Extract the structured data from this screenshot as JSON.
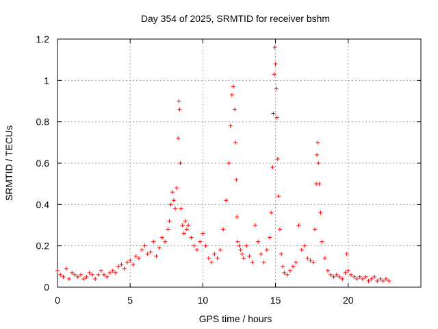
{
  "chart_data": {
    "type": "scatter",
    "title": "Day 354 of 2025, SRMTID for receiver bshm",
    "xlabel": "GPS time / hours",
    "ylabel": "SRMTID / TECUs",
    "xlim": [
      0,
      25
    ],
    "ylim": [
      0,
      1.2
    ],
    "xticks": [
      0,
      5,
      10,
      15,
      20
    ],
    "xtick_labels": [
      "0",
      "5",
      "10",
      "15",
      "20"
    ],
    "yticks": [
      0,
      0.2,
      0.4,
      0.6,
      0.8,
      1,
      1.2
    ],
    "ytick_labels": [
      "0",
      "0.2",
      "0.4",
      "0.6",
      "0.8",
      "1",
      "1.2"
    ],
    "grid": true,
    "marker": "+",
    "marker_color": "#ff0000",
    "series": [
      {
        "name": "bshm",
        "x": [
          0.0,
          0.2,
          0.4,
          0.6,
          0.8,
          1.0,
          1.2,
          1.4,
          1.6,
          1.8,
          2.0,
          2.2,
          2.4,
          2.6,
          2.8,
          3.0,
          3.2,
          3.4,
          3.6,
          3.8,
          4.0,
          4.2,
          4.4,
          4.6,
          4.8,
          5.0,
          5.2,
          5.4,
          5.6,
          5.8,
          6.0,
          6.2,
          6.4,
          6.6,
          6.8,
          7.0,
          7.2,
          7.4,
          7.6,
          7.7,
          7.8,
          7.9,
          8.0,
          8.1,
          8.2,
          8.3,
          8.35,
          8.4,
          8.45,
          8.5,
          8.6,
          8.7,
          8.8,
          8.9,
          9.0,
          9.2,
          9.4,
          9.6,
          9.8,
          10.0,
          10.2,
          10.4,
          10.6,
          10.8,
          11.0,
          11.2,
          11.4,
          11.6,
          11.8,
          11.9,
          12.0,
          12.1,
          12.2,
          12.25,
          12.3,
          12.35,
          12.4,
          12.5,
          12.6,
          12.7,
          12.8,
          13.0,
          13.2,
          13.4,
          13.6,
          13.8,
          14.0,
          14.2,
          14.4,
          14.6,
          14.7,
          14.8,
          14.85,
          14.9,
          14.95,
          15.0,
          15.05,
          15.1,
          15.15,
          15.2,
          15.3,
          15.4,
          15.5,
          15.6,
          15.8,
          16.0,
          16.2,
          16.4,
          16.6,
          16.8,
          17.0,
          17.2,
          17.4,
          17.6,
          17.7,
          17.8,
          17.85,
          17.9,
          17.95,
          18.0,
          18.1,
          18.2,
          18.4,
          18.6,
          18.8,
          19.0,
          19.2,
          19.4,
          19.6,
          19.8,
          19.9,
          20.0,
          20.2,
          20.4,
          20.6,
          20.8,
          21.0,
          21.2,
          21.4,
          21.6,
          21.8,
          22.0,
          22.2,
          22.4,
          22.6,
          22.8
        ],
        "y": [
          0.08,
          0.06,
          0.05,
          0.09,
          0.04,
          0.07,
          0.06,
          0.05,
          0.06,
          0.04,
          0.05,
          0.07,
          0.06,
          0.04,
          0.06,
          0.08,
          0.06,
          0.05,
          0.07,
          0.08,
          0.07,
          0.1,
          0.11,
          0.09,
          0.12,
          0.13,
          0.11,
          0.15,
          0.14,
          0.18,
          0.2,
          0.16,
          0.17,
          0.22,
          0.15,
          0.19,
          0.24,
          0.22,
          0.28,
          0.32,
          0.4,
          0.46,
          0.42,
          0.38,
          0.48,
          0.72,
          0.9,
          0.86,
          0.6,
          0.38,
          0.3,
          0.26,
          0.32,
          0.28,
          0.3,
          0.24,
          0.2,
          0.18,
          0.22,
          0.26,
          0.2,
          0.14,
          0.12,
          0.16,
          0.14,
          0.18,
          0.28,
          0.42,
          0.6,
          0.78,
          0.93,
          0.97,
          0.86,
          0.7,
          0.52,
          0.34,
          0.22,
          0.2,
          0.18,
          0.16,
          0.14,
          0.2,
          0.15,
          0.12,
          0.3,
          0.22,
          0.16,
          0.12,
          0.18,
          0.24,
          0.36,
          0.58,
          0.84,
          1.03,
          1.16,
          1.08,
          0.96,
          0.82,
          0.62,
          0.44,
          0.28,
          0.16,
          0.1,
          0.07,
          0.06,
          0.08,
          0.1,
          0.12,
          0.3,
          0.18,
          0.2,
          0.14,
          0.13,
          0.12,
          0.28,
          0.5,
          0.64,
          0.7,
          0.6,
          0.5,
          0.36,
          0.22,
          0.14,
          0.08,
          0.06,
          0.05,
          0.06,
          0.05,
          0.04,
          0.07,
          0.16,
          0.08,
          0.06,
          0.05,
          0.04,
          0.05,
          0.04,
          0.05,
          0.03,
          0.04,
          0.05,
          0.03,
          0.04,
          0.03,
          0.04,
          0.03
        ]
      }
    ]
  }
}
